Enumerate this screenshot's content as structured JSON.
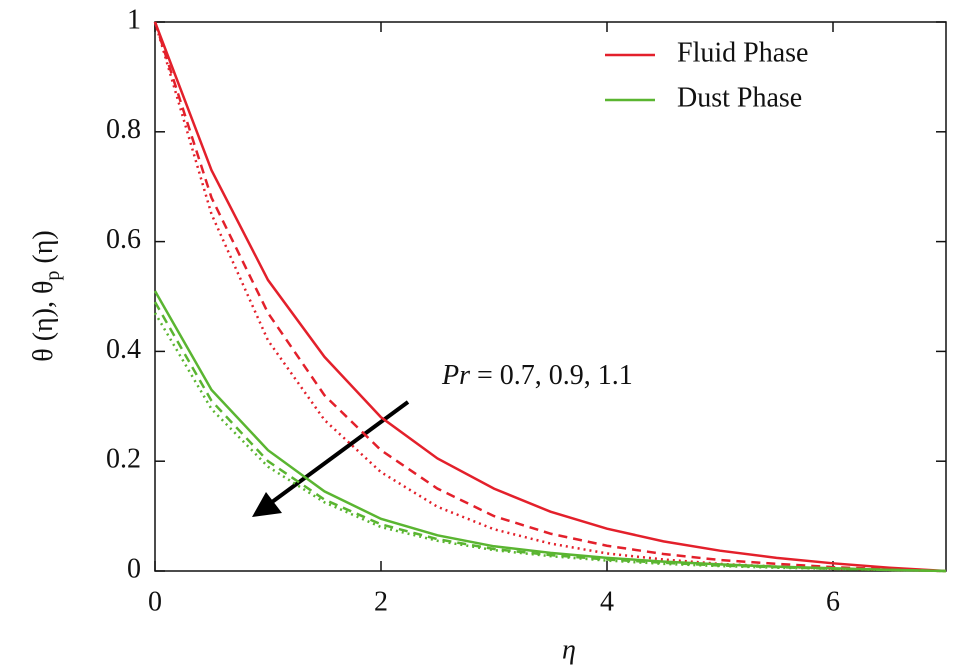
{
  "chart_data": {
    "type": "line",
    "xlabel": "η",
    "ylabel": {
      "main": "θ (η), θ",
      "sub": "p",
      "tail": " (η)"
    },
    "annotation": {
      "symbol": "Pr",
      "text": " = 0.7, 0.9, 1.1"
    },
    "xlim": [
      0,
      7
    ],
    "ylim": [
      0,
      1
    ],
    "xticks": [
      0,
      2,
      4,
      6
    ],
    "yticks": [
      0,
      0.2,
      0.4,
      0.6,
      0.8,
      1
    ],
    "legend": "upper right",
    "x": [
      0,
      0.5,
      1,
      1.5,
      2,
      2.5,
      3,
      3.5,
      4,
      4.5,
      5,
      5.5,
      6,
      6.5,
      7
    ],
    "groups": [
      {
        "name": "Fluid Phase",
        "color": "#e3202b",
        "lines": [
          {
            "dash": "solid",
            "values": [
              1,
              0.73,
              0.53,
              0.39,
              0.28,
              0.205,
              0.15,
              0.108,
              0.077,
              0.054,
              0.037,
              0.024,
              0.014,
              0.006,
              0
            ]
          },
          {
            "dash": "dashed",
            "values": [
              1,
              0.68,
              0.47,
              0.32,
              0.22,
              0.15,
              0.1,
              0.068,
              0.046,
              0.031,
              0.02,
              0.013,
              0.007,
              0.003,
              0
            ]
          },
          {
            "dash": "dotted",
            "values": [
              1,
              0.65,
              0.42,
              0.275,
              0.18,
              0.117,
              0.076,
              0.05,
              0.032,
              0.021,
              0.013,
              0.008,
              0.004,
              0.002,
              0
            ]
          }
        ]
      },
      {
        "name": "Dust Phase",
        "color": "#5ab531",
        "lines": [
          {
            "dash": "solid",
            "values": [
              0.51,
              0.33,
              0.22,
              0.145,
              0.095,
              0.065,
              0.045,
              0.033,
              0.024,
              0.017,
              0.012,
              0.008,
              0.005,
              0.002,
              0
            ]
          },
          {
            "dash": "dashed",
            "values": [
              0.49,
              0.31,
              0.2,
              0.13,
              0.085,
              0.058,
              0.04,
              0.029,
              0.021,
              0.015,
              0.01,
              0.007,
              0.004,
              0.002,
              0
            ]
          },
          {
            "dash": "dotted",
            "values": [
              0.47,
              0.295,
              0.19,
              0.125,
              0.08,
              0.055,
              0.038,
              0.027,
              0.019,
              0.013,
              0.009,
              0.006,
              0.004,
              0.002,
              0
            ]
          }
        ]
      }
    ]
  }
}
